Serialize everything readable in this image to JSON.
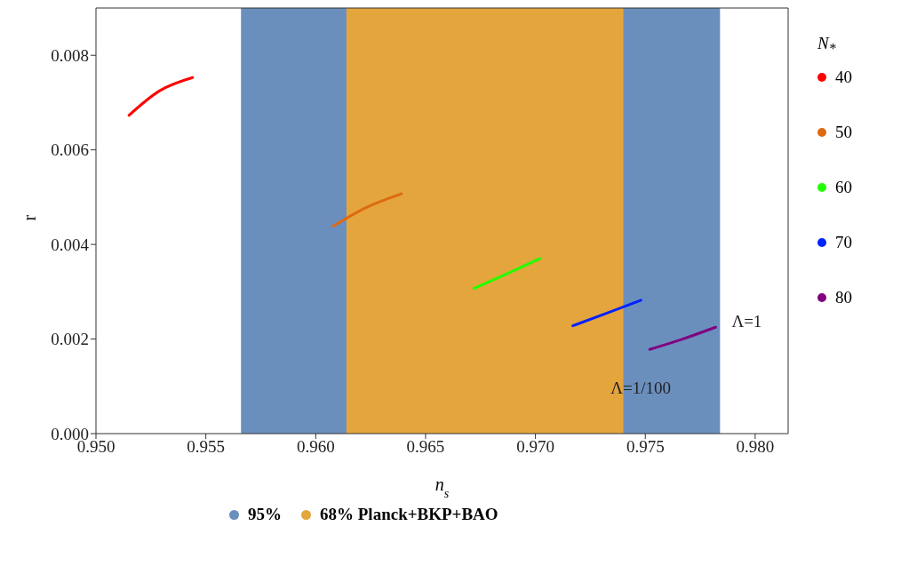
{
  "chart_data": {
    "type": "line",
    "xlabel": "n$_{s}$",
    "ylabel": "r",
    "legend_title": "N$_{*}$",
    "xlim": [
      0.95,
      0.9815
    ],
    "ylim": [
      0,
      0.009
    ],
    "xticks": [
      {
        "value": 0.95,
        "label": "0.950"
      },
      {
        "value": 0.955,
        "label": "0.955"
      },
      {
        "value": 0.96,
        "label": "0.960"
      },
      {
        "value": 0.965,
        "label": "0.965"
      },
      {
        "value": 0.97,
        "label": "0.970"
      },
      {
        "value": 0.975,
        "label": "0.975"
      },
      {
        "value": 0.98,
        "label": "0.980"
      }
    ],
    "yticks": [
      {
        "value": 0,
        "label": "0.000"
      },
      {
        "value": 0.002,
        "label": "0.002"
      },
      {
        "value": 0.004,
        "label": "0.004"
      },
      {
        "value": 0.006,
        "label": "0.006"
      },
      {
        "value": 0.008,
        "label": "0.008"
      }
    ],
    "grid": false,
    "legend": "right",
    "marker": "none",
    "line_style": "solid",
    "bands": [
      {
        "axis": "x",
        "from": 0.9566,
        "to": 0.9784,
        "label": "95%",
        "color": "#6b8fbd"
      },
      {
        "axis": "x",
        "from": 0.9614,
        "to": 0.974,
        "label": "68% Planck+BKP+BAO",
        "color": "#e4a53d"
      }
    ],
    "series": [
      {
        "name": "40",
        "color": "#ff0000",
        "x": [
          0.9515,
          0.9529,
          0.9544
        ],
        "values": [
          0.00673,
          0.00725,
          0.00753
        ]
      },
      {
        "name": "50",
        "color": "#dd6a10",
        "x": [
          0.9608,
          0.9623,
          0.9639
        ],
        "values": [
          0.00439,
          0.00478,
          0.00507
        ]
      },
      {
        "name": "60",
        "color": "#22ff00",
        "x": [
          0.9672,
          0.9687,
          0.9702
        ],
        "values": [
          0.00307,
          0.00338,
          0.0037
        ]
      },
      {
        "name": "70",
        "color": "#0022ff",
        "x": [
          0.9717,
          0.9732,
          0.9748
        ],
        "values": [
          0.00228,
          0.00254,
          0.00282
        ]
      },
      {
        "name": "80",
        "color": "#800080",
        "x": [
          0.9752,
          0.9767,
          0.9782
        ],
        "values": [
          0.00178,
          0.002,
          0.00225
        ]
      }
    ],
    "annotations": [
      {
        "text": "Λ=1",
        "x": 0.9782,
        "y": 0.00225
      },
      {
        "text": "Λ=1/100",
        "x": 0.9752,
        "y": 0.00178
      }
    ]
  }
}
